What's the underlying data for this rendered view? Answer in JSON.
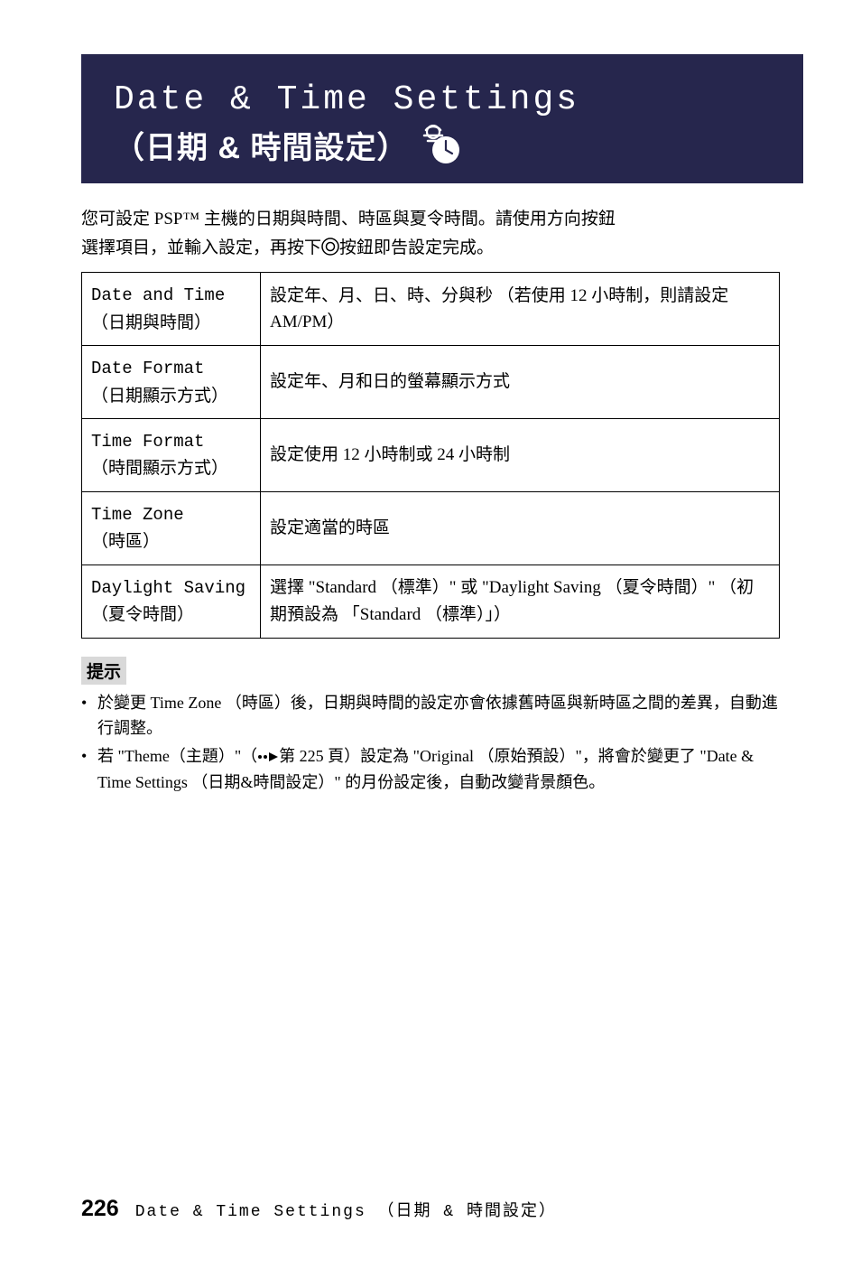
{
  "header": {
    "title_en": "Date & Time Settings",
    "title_zh": "（日期 & 時間設定）"
  },
  "intro": {
    "line1_a": "您可設定 PSP™ 主機的日期與時間、時區與夏令時間。請使用方向按鈕",
    "line2_a": "選擇項目，並輸入設定，再按下",
    "line2_b": "按鈕即告設定完成。"
  },
  "table": {
    "rows": [
      {
        "label_en": "Date and Time",
        "label_zh": "（日期與時間）",
        "desc": "設定年、月、日、時、分與秒 （若使用 12 小時制，則請設定 AM/PM）"
      },
      {
        "label_en": "Date Format",
        "label_zh": "（日期顯示方式）",
        "desc": "設定年、月和日的螢幕顯示方式"
      },
      {
        "label_en": "Time Format",
        "label_zh": "（時間顯示方式）",
        "desc": "設定使用 12 小時制或 24 小時制"
      },
      {
        "label_en": "Time Zone",
        "label_zh": "（時區）",
        "desc": "設定適當的時區"
      },
      {
        "label_en": "Daylight Saving",
        "label_zh": "（夏令時間）",
        "desc": "選擇 \"Standard （標準）\" 或 \"Daylight Saving （夏令時間）\" （初期預設為 「Standard （標準）」）"
      }
    ]
  },
  "hint": {
    "label": "提示",
    "items": [
      "於變更 Time Zone （時區）後，日期與時間的設定亦會依據舊時區與新時區之間的差異，自動進行調整。",
      "若 \"Theme（主題）\"（XREF第 225 頁）設定為 \"Original （原始預設）\"，將會於變更了 \"Date & Time Settings （日期&時間設定）\" 的月份設定後，自動改變背景顏色。"
    ]
  },
  "footer": {
    "page": "226",
    "title": "Date & Time Settings （日期 & 時間設定）"
  },
  "colors": {
    "header_bg": "#26264d",
    "header_fg": "#ffffff",
    "text": "#000000",
    "hint_bg": "#d9d9d9",
    "border": "#000000"
  }
}
